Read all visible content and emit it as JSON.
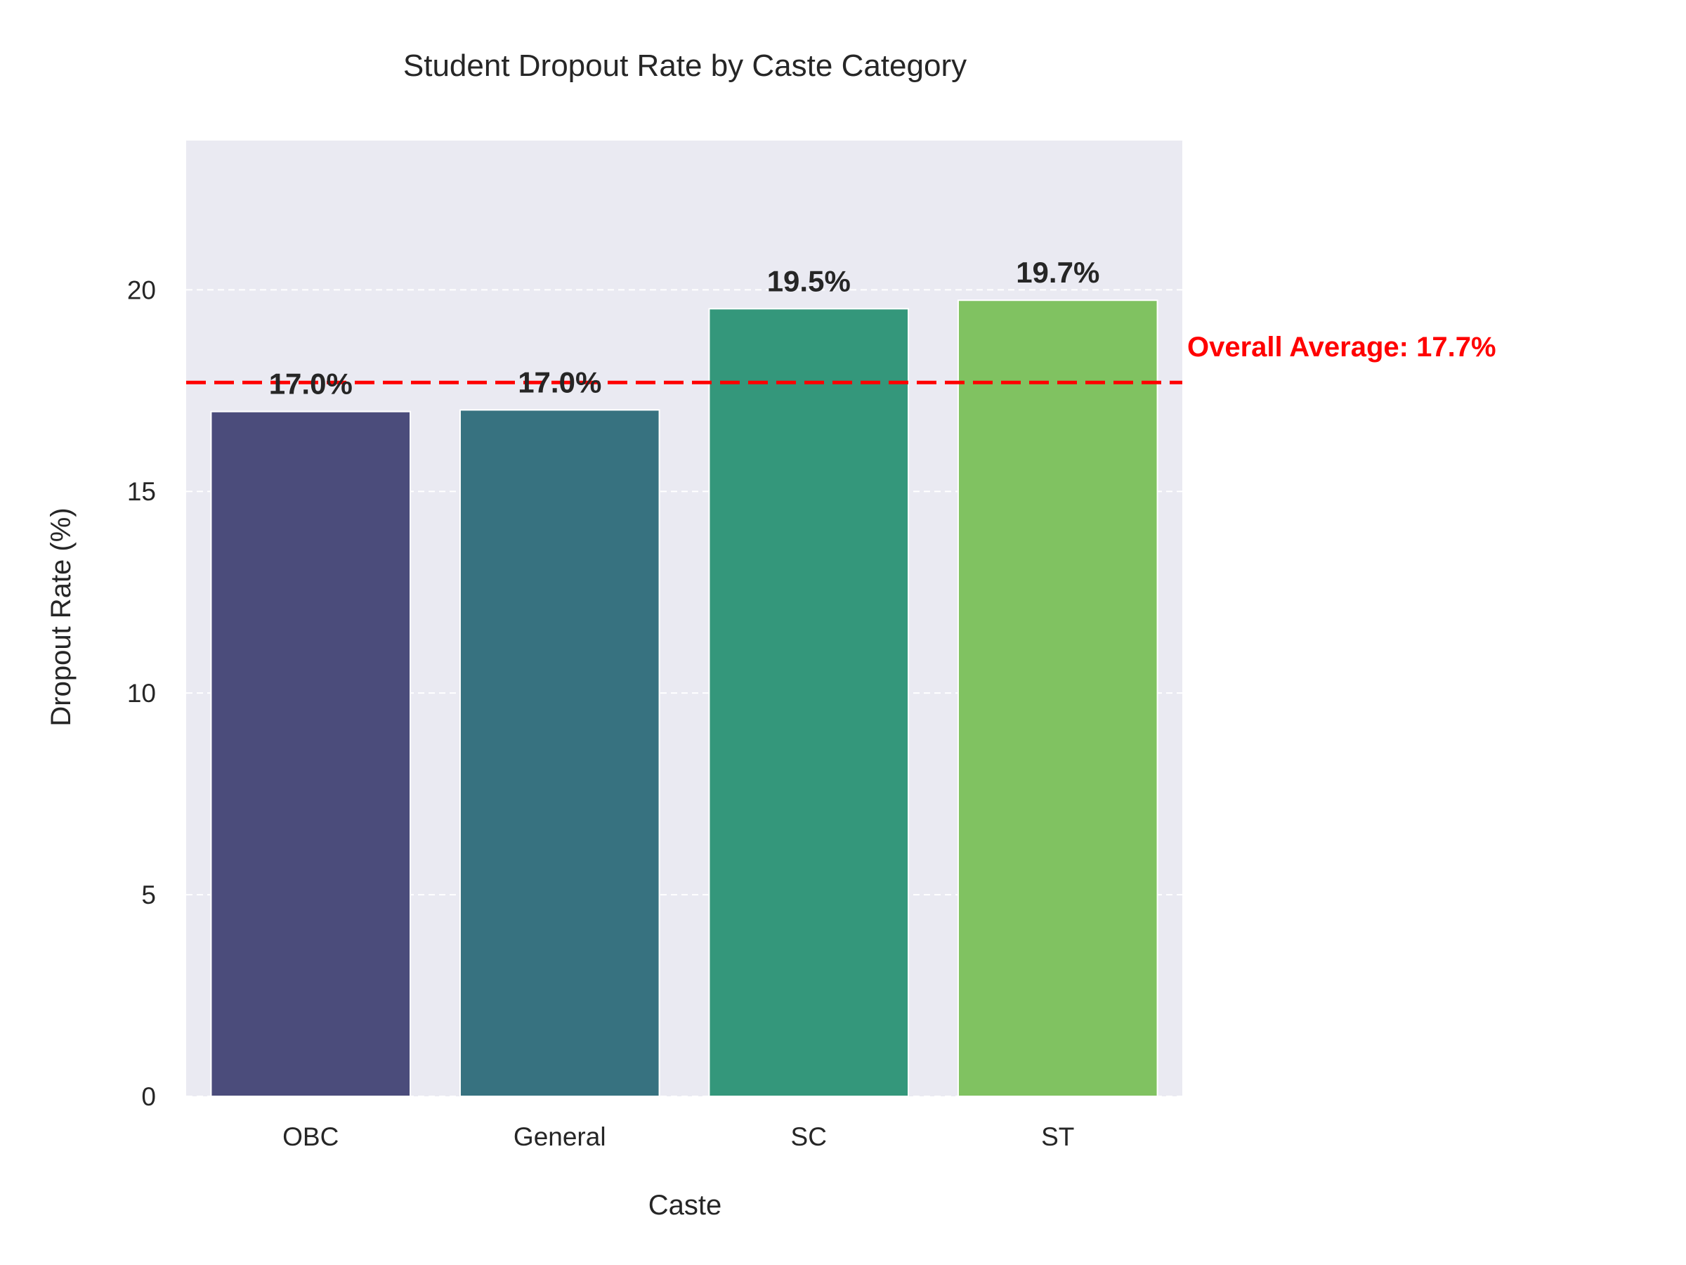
{
  "chart_data": {
    "type": "bar",
    "title": "Student Dropout Rate by Caste Category",
    "xlabel": "Caste",
    "ylabel": "Dropout Rate (%)",
    "categories": [
      "OBC",
      "General",
      "SC",
      "ST"
    ],
    "values": [
      16.98,
      17.02,
      19.53,
      19.74
    ],
    "value_labels": [
      "17.0%",
      "17.0%",
      "19.5%",
      "19.7%"
    ],
    "colors": [
      "#4b4c7b",
      "#377280",
      "#34977b",
      "#80c261"
    ],
    "ylim": [
      0,
      23.7
    ],
    "yticks": [
      0,
      5,
      10,
      15,
      20
    ],
    "grid": true,
    "reference_line": {
      "value": 17.7,
      "label": "Overall Average: 17.7%",
      "color": "#ff0000",
      "style": "dashed"
    }
  }
}
